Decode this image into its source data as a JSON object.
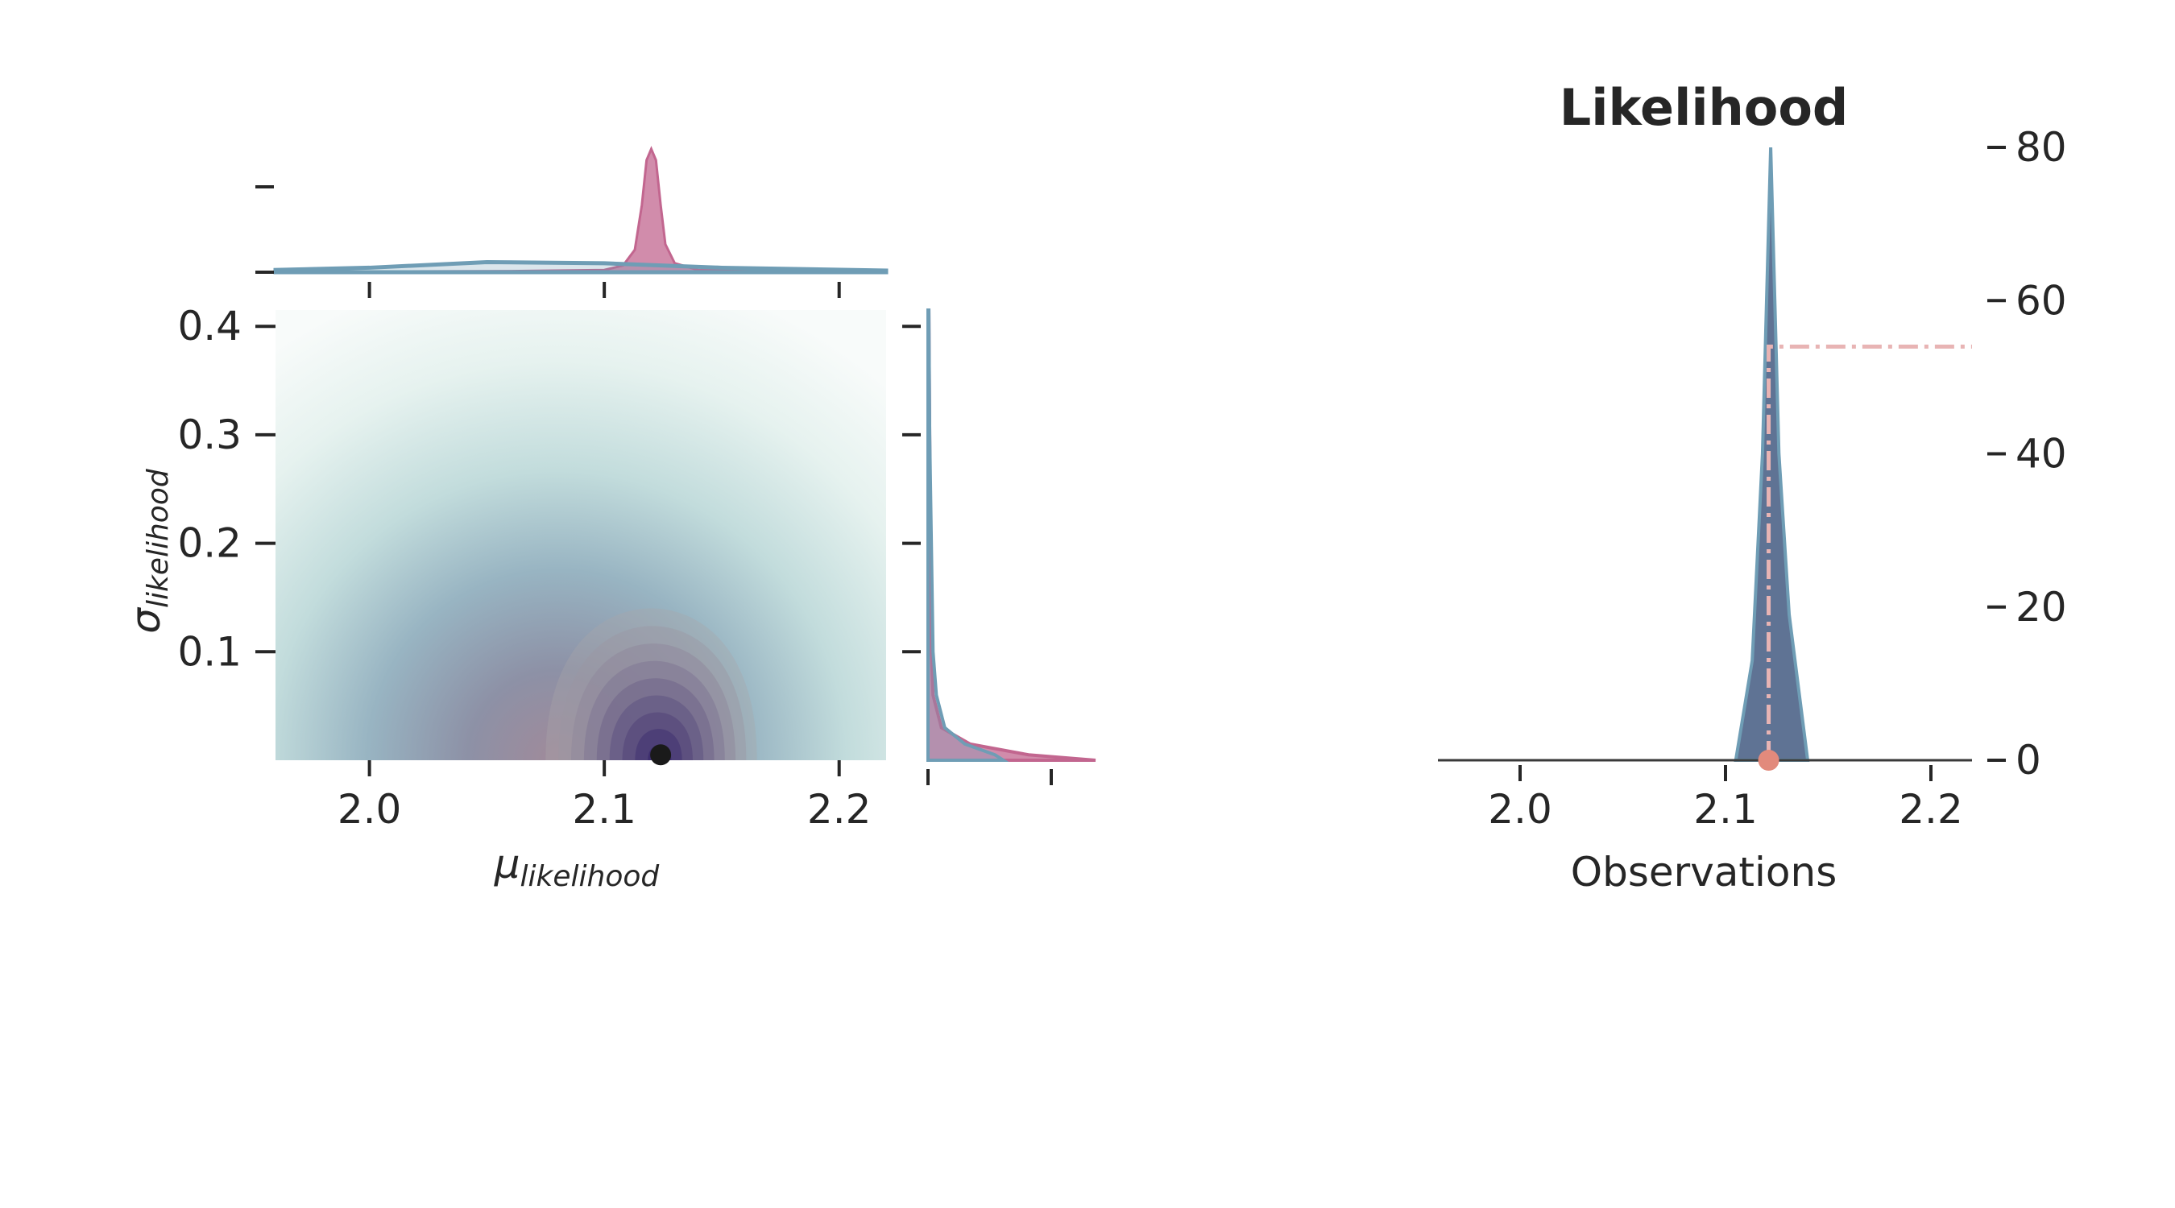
{
  "chart_data": [
    {
      "type": "heatmap",
      "panel": "joint",
      "xlabel": {
        "symbol": "μ",
        "subscript": "likelihood"
      },
      "ylabel": {
        "symbol": "σ",
        "subscript": "likelihood"
      },
      "xlim": [
        1.96,
        2.22
      ],
      "ylim": [
        0.0,
        0.415
      ],
      "xticks": [
        2.0,
        2.1,
        2.2
      ],
      "xticklabels": [
        "2.0",
        "2.1",
        "2.2"
      ],
      "yticks": [
        0.1,
        0.2,
        0.3,
        0.4
      ],
      "yticklabels": [
        "0.1",
        "0.2",
        "0.3",
        "0.4"
      ],
      "prior_density": {
        "mu_center": 2.08,
        "sigma_center": 0.0
      },
      "posterior_contours": {
        "mu_center": 2.12,
        "sigma_center": 0.0,
        "mu_halfwidth": 0.045,
        "sigma_top": 0.14,
        "levels": 9
      },
      "posterior_point": {
        "mu": 2.124,
        "sigma": 0.005
      },
      "colors": {
        "prior_map": [
          "#ffffff",
          "#e3f0ee",
          "#aecbd0",
          "#7b8ea8",
          "#a08a9a"
        ],
        "posterior": "#5b2f6b",
        "point": "#1a1a1a"
      }
    },
    {
      "type": "area",
      "panel": "marginal-mu",
      "xlim": [
        1.96,
        2.22
      ],
      "series": [
        {
          "name": "",
          "color": "#c2668f",
          "x": [
            1.96,
            2.06,
            2.1,
            2.108,
            2.113,
            2.116,
            2.118,
            2.12,
            2.122,
            2.124,
            2.126,
            2.13,
            2.14,
            2.22
          ],
          "y": [
            0.3,
            1.0,
            2.0,
            6.0,
            20.0,
            60.0,
            100.0,
            110.0,
            100.0,
            60.0,
            25.0,
            8.0,
            2.0,
            0.3
          ]
        },
        {
          "name": "",
          "color": "#6f9db5",
          "x": [
            1.96,
            2.0,
            2.05,
            2.1,
            2.15,
            2.22
          ],
          "y": [
            2.0,
            4.0,
            9.0,
            8.0,
            4.0,
            1.5
          ]
        }
      ]
    },
    {
      "type": "area",
      "panel": "marginal-sigma",
      "ylim": [
        0.0,
        0.415
      ],
      "series": [
        {
          "name": "",
          "color": "#c2668f",
          "sigma": [
            0.0,
            0.005,
            0.015,
            0.03,
            0.06,
            0.1,
            0.3,
            0.415
          ],
          "density": [
            100.0,
            60.0,
            25.0,
            8.0,
            3.0,
            2.0,
            1.0,
            0.5
          ]
        },
        {
          "name": "",
          "color": "#6f9db5",
          "sigma": [
            0.0,
            0.005,
            0.015,
            0.03,
            0.06,
            0.1,
            0.3,
            0.415
          ],
          "density": [
            45.0,
            40.0,
            22.0,
            10.0,
            5.0,
            3.0,
            1.0,
            0.5
          ]
        }
      ]
    },
    {
      "type": "area",
      "panel": "observations",
      "title": "Likelihood",
      "xlabel": "Observations",
      "xlim": [
        1.96,
        2.22
      ],
      "ylim": [
        0,
        80
      ],
      "xticks": [
        2.0,
        2.1,
        2.2
      ],
      "xticklabels": [
        "2.0",
        "2.1",
        "2.2"
      ],
      "yticks": [
        0,
        20,
        40,
        60,
        80
      ],
      "yticklabels": [
        "0",
        "20",
        "40",
        "60",
        "80"
      ],
      "yaxis_side": "right",
      "density": {
        "x": [
          2.105,
          2.113,
          2.118,
          2.122,
          2.126,
          2.131,
          2.14
        ],
        "y": [
          0,
          13,
          40,
          80,
          40,
          19,
          0
        ],
        "color": "#5f7394",
        "edge": "#6f9db5"
      },
      "observed_point": {
        "x": 2.121,
        "y": 0
      },
      "step_line": {
        "x": [
          2.121,
          2.121,
          2.22
        ],
        "y": [
          0,
          54,
          54
        ],
        "color": "#e8b4b4"
      },
      "colors": {
        "point": "#e28a7c"
      }
    }
  ]
}
